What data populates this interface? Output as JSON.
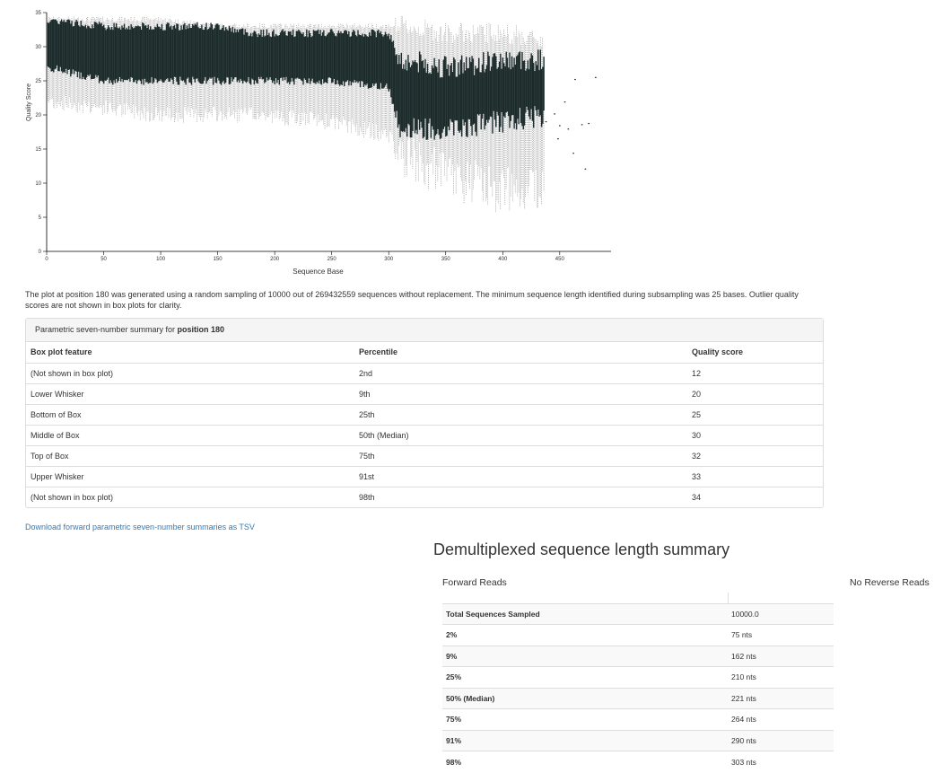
{
  "chart_data": {
    "type": "boxplot",
    "xlabel": "Sequence Base",
    "ylabel": "Quality Score",
    "xlim": [
      0,
      495
    ],
    "ylim": [
      0,
      35
    ],
    "x_ticks": [
      0,
      50,
      100,
      150,
      200,
      250,
      300,
      350,
      400,
      450
    ],
    "y_ticks": [
      0,
      5,
      10,
      15,
      20,
      25,
      30,
      35
    ],
    "series_profile": [
      {
        "x": 1,
        "whisker_low": 22,
        "box_low": 27,
        "median": 32,
        "box_high": 34,
        "whisker_high": 34
      },
      {
        "x": 50,
        "whisker_low": 21,
        "box_low": 25,
        "median": 31,
        "box_high": 33,
        "whisker_high": 34
      },
      {
        "x": 100,
        "whisker_low": 20,
        "box_low": 25,
        "median": 30,
        "box_high": 33,
        "whisker_high": 34
      },
      {
        "x": 150,
        "whisker_low": 20,
        "box_low": 25,
        "median": 30,
        "box_high": 33,
        "whisker_high": 33
      },
      {
        "x": 180,
        "whisker_low": 20,
        "box_low": 25,
        "median": 30,
        "box_high": 32,
        "whisker_high": 33
      },
      {
        "x": 250,
        "whisker_low": 19,
        "box_low": 25,
        "median": 30,
        "box_high": 32,
        "whisker_high": 33
      },
      {
        "x": 300,
        "whisker_low": 17,
        "box_low": 24,
        "median": 29,
        "box_high": 32,
        "whisker_high": 33
      },
      {
        "x": 310,
        "whisker_low": 14,
        "box_low": 18,
        "median": 24,
        "box_high": 28,
        "whisker_high": 33
      },
      {
        "x": 350,
        "whisker_low": 11,
        "box_low": 18,
        "median": 23,
        "box_high": 27,
        "whisker_high": 32
      },
      {
        "x": 400,
        "whisker_low": 9,
        "box_low": 19,
        "median": 24,
        "box_high": 28,
        "whisker_high": 32
      },
      {
        "x": 435,
        "whisker_low": 10,
        "box_low": 20,
        "median": 24,
        "box_high": 28,
        "whisker_high": 31
      },
      {
        "x": 440,
        "whisker_low": 20,
        "box_low": 20,
        "median": 21,
        "box_high": 22,
        "whisker_high": 22
      },
      {
        "x": 455,
        "whisker_low": 12,
        "box_low": 14,
        "median": 17,
        "box_high": 22,
        "whisker_high": 27
      },
      {
        "x": 480,
        "whisker_low": 12,
        "box_low": 16,
        "median": 20,
        "box_high": 26,
        "whisker_high": 29
      }
    ]
  },
  "caption": "The plot at position 180 was generated using a random sampling of 10000 out of 269432559 sequences without replacement. The minimum sequence length identified during subsampling was 25 bases. Outlier quality scores are not shown in box plots for clarity.",
  "summary_panel": {
    "heading_prefix": "Parametric seven-number summary for ",
    "heading_bold": "position 180",
    "columns": [
      "Box plot feature",
      "Percentile",
      "Quality score"
    ],
    "rows": [
      [
        "(Not shown in box plot)",
        "2nd",
        "12"
      ],
      [
        "Lower Whisker",
        "9th",
        "20"
      ],
      [
        "Bottom of Box",
        "25th",
        "25"
      ],
      [
        "Middle of Box",
        "50th (Median)",
        "30"
      ],
      [
        "Top of Box",
        "75th",
        "32"
      ],
      [
        "Upper Whisker",
        "91st",
        "33"
      ],
      [
        "(Not shown in box plot)",
        "98th",
        "34"
      ]
    ]
  },
  "download_link": "Download forward parametric seven-number summaries as TSV",
  "demux": {
    "title": "Demultiplexed sequence length summary",
    "forward_label": "Forward Reads",
    "reverse_label": "No Reverse Reads",
    "rows": [
      [
        "Total Sequences Sampled",
        "10000.0"
      ],
      [
        "2%",
        "75 nts"
      ],
      [
        "9%",
        "162 nts"
      ],
      [
        "25%",
        "210 nts"
      ],
      [
        "50% (Median)",
        "221 nts"
      ],
      [
        "75%",
        "264 nts"
      ],
      [
        "91%",
        "290 nts"
      ],
      [
        "98%",
        "303 nts"
      ]
    ]
  }
}
